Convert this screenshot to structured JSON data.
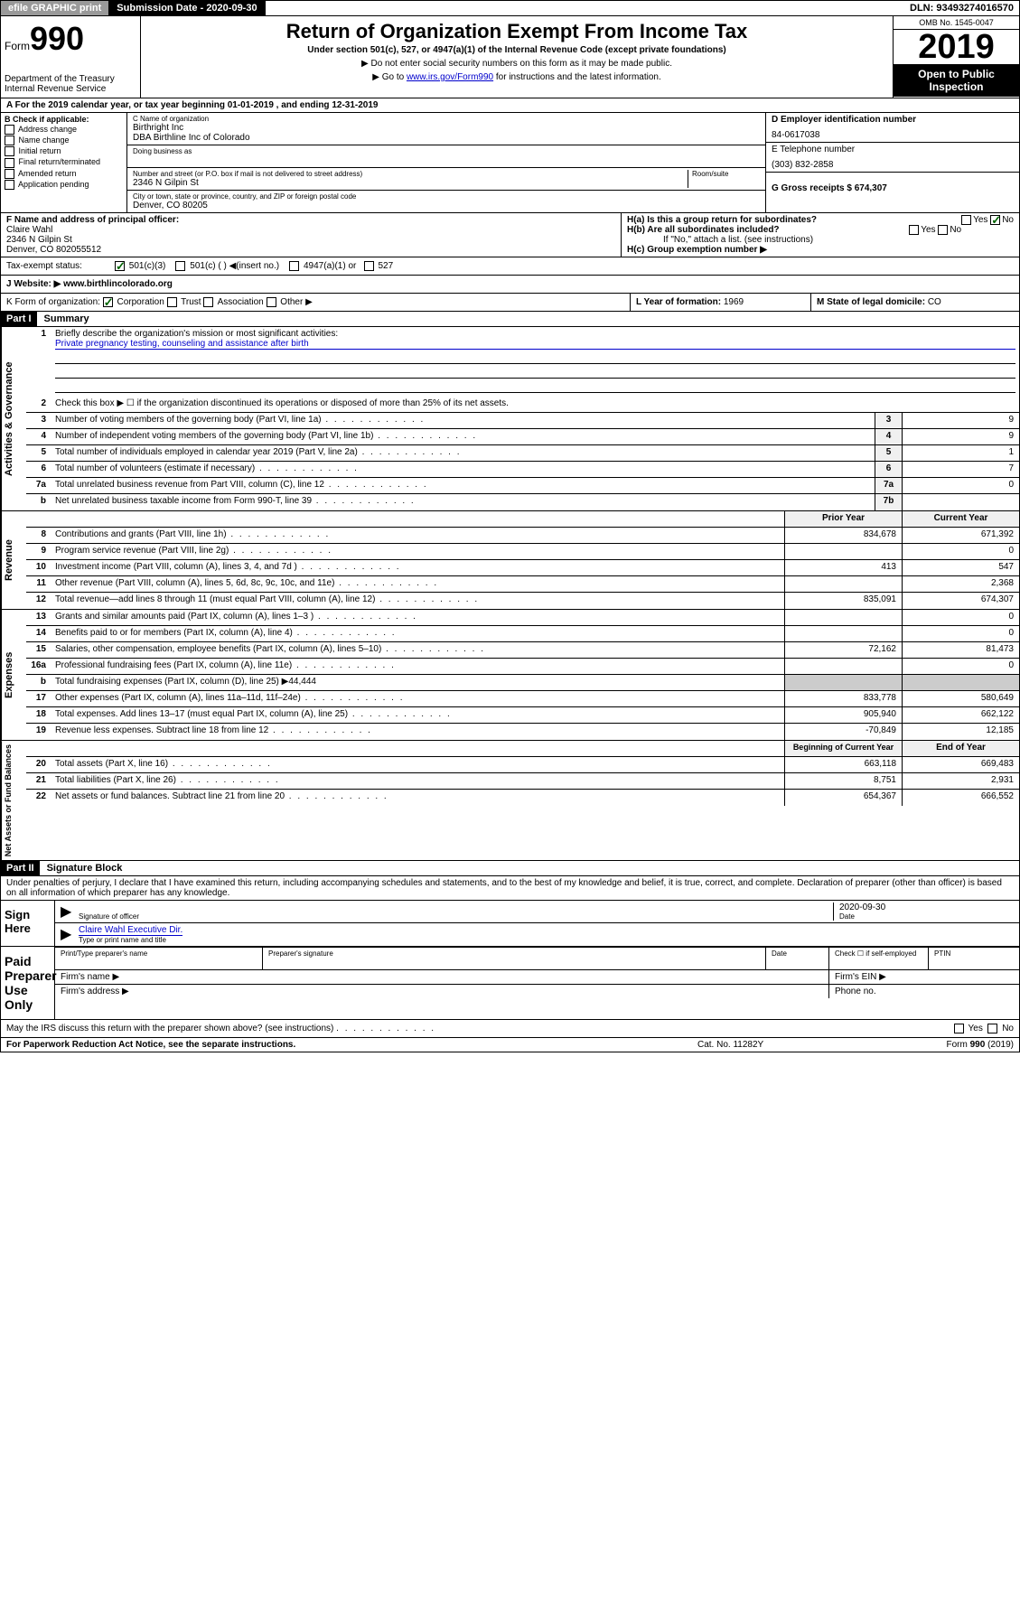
{
  "topbar": {
    "efile": "efile GRAPHIC print",
    "submission_label": "Submission Date - 2020-09-30",
    "dln": "DLN: 93493274016570"
  },
  "header": {
    "form_label": "Form",
    "form_num": "990",
    "dept": "Department of the Treasury",
    "irs": "Internal Revenue Service",
    "title": "Return of Organization Exempt From Income Tax",
    "subtitle": "Under section 501(c), 527, or 4947(a)(1) of the Internal Revenue Code (except private foundations)",
    "instr1": "▶ Do not enter social security numbers on this form as it may be made public.",
    "instr2_pre": "▶ Go to ",
    "instr2_link": "www.irs.gov/Form990",
    "instr2_post": " for instructions and the latest information.",
    "omb": "OMB No. 1545-0047",
    "year": "2019",
    "open": "Open to Public Inspection"
  },
  "period": "A   For the 2019 calendar year, or tax year beginning 01-01-2019    , and ending 12-31-2019",
  "col_b": {
    "hdr": "B Check if applicable:",
    "items": [
      "Address change",
      "Name change",
      "Initial return",
      "Final return/terminated",
      "Amended return",
      "Application pending"
    ]
  },
  "col_c": {
    "name_label": "C Name of organization",
    "name1": "Birthright Inc",
    "name2": "DBA Birthline Inc of Colorado",
    "dba_label": "Doing business as",
    "addr_label": "Number and street (or P.O. box if mail is not delivered to street address)",
    "room_label": "Room/suite",
    "addr": "2346 N Gilpin St",
    "city_label": "City or town, state or province, country, and ZIP or foreign postal code",
    "city": "Denver, CO  80205"
  },
  "col_de": {
    "d_label": "D Employer identification number",
    "ein": "84-0617038",
    "e_label": "E Telephone number",
    "phone": "(303) 832-2858",
    "g_label": "G Gross receipts $ 674,307"
  },
  "row_f": {
    "f_label": "F  Name and address of principal officer:",
    "name": "Claire Wahl",
    "addr1": "2346 N Gilpin St",
    "addr2": "Denver, CO  802055512"
  },
  "row_h": {
    "ha": "H(a)  Is this a group return for subordinates?",
    "hb": "H(b)  Are all subordinates included?",
    "hb_note": "If \"No,\" attach a list. (see instructions)",
    "hc": "H(c)  Group exemption number ▶"
  },
  "tax_status": {
    "label": "Tax-exempt status:",
    "opts": [
      "501(c)(3)",
      "501(c) (   ) ◀(insert no.)",
      "4947(a)(1) or",
      "527"
    ]
  },
  "website": {
    "label": "J   Website: ▶",
    "url": "www.birthlincolorado.org"
  },
  "klm": {
    "k": "K Form of organization:",
    "k_opts": [
      "Corporation",
      "Trust",
      "Association",
      "Other ▶"
    ],
    "l_label": "L Year of formation:",
    "l_val": "1969",
    "m_label": "M State of legal domicile:",
    "m_val": "CO"
  },
  "part1": {
    "hdr": "Part I",
    "title": "Summary",
    "q1": "Briefly describe the organization's mission or most significant activities:",
    "q1_ans": "Private pregnancy testing, counseling and assistance after birth",
    "q2": "Check this box ▶ ☐  if the organization discontinued its operations or disposed of more than 25% of its net assets.",
    "lines_gov": [
      {
        "n": "3",
        "d": "Number of voting members of the governing body (Part VI, line 1a)",
        "box": "3",
        "v": "9"
      },
      {
        "n": "4",
        "d": "Number of independent voting members of the governing body (Part VI, line 1b)",
        "box": "4",
        "v": "9"
      },
      {
        "n": "5",
        "d": "Total number of individuals employed in calendar year 2019 (Part V, line 2a)",
        "box": "5",
        "v": "1"
      },
      {
        "n": "6",
        "d": "Total number of volunteers (estimate if necessary)",
        "box": "6",
        "v": "7"
      },
      {
        "n": "7a",
        "d": "Total unrelated business revenue from Part VIII, column (C), line 12",
        "box": "7a",
        "v": "0"
      },
      {
        "n": "b",
        "d": "Net unrelated business taxable income from Form 990-T, line 39",
        "box": "7b",
        "v": ""
      }
    ],
    "col_py": "Prior Year",
    "col_cy": "Current Year",
    "lines_rev": [
      {
        "n": "8",
        "d": "Contributions and grants (Part VIII, line 1h)",
        "py": "834,678",
        "cy": "671,392"
      },
      {
        "n": "9",
        "d": "Program service revenue (Part VIII, line 2g)",
        "py": "",
        "cy": "0"
      },
      {
        "n": "10",
        "d": "Investment income (Part VIII, column (A), lines 3, 4, and 7d )",
        "py": "413",
        "cy": "547"
      },
      {
        "n": "11",
        "d": "Other revenue (Part VIII, column (A), lines 5, 6d, 8c, 9c, 10c, and 11e)",
        "py": "",
        "cy": "2,368"
      },
      {
        "n": "12",
        "d": "Total revenue—add lines 8 through 11 (must equal Part VIII, column (A), line 12)",
        "py": "835,091",
        "cy": "674,307"
      }
    ],
    "lines_exp": [
      {
        "n": "13",
        "d": "Grants and similar amounts paid (Part IX, column (A), lines 1–3 )",
        "py": "",
        "cy": "0"
      },
      {
        "n": "14",
        "d": "Benefits paid to or for members (Part IX, column (A), line 4)",
        "py": "",
        "cy": "0"
      },
      {
        "n": "15",
        "d": "Salaries, other compensation, employee benefits (Part IX, column (A), lines 5–10)",
        "py": "72,162",
        "cy": "81,473"
      },
      {
        "n": "16a",
        "d": "Professional fundraising fees (Part IX, column (A), line 11e)",
        "py": "",
        "cy": "0"
      },
      {
        "n": "b",
        "d": "Total fundraising expenses (Part IX, column (D), line 25) ▶44,444",
        "py": "—",
        "cy": "—"
      },
      {
        "n": "17",
        "d": "Other expenses (Part IX, column (A), lines 11a–11d, 11f–24e)",
        "py": "833,778",
        "cy": "580,649"
      },
      {
        "n": "18",
        "d": "Total expenses. Add lines 13–17 (must equal Part IX, column (A), line 25)",
        "py": "905,940",
        "cy": "662,122"
      },
      {
        "n": "19",
        "d": "Revenue less expenses. Subtract line 18 from line 12",
        "py": "-70,849",
        "cy": "12,185"
      }
    ],
    "col_bcy": "Beginning of Current Year",
    "col_eoy": "End of Year",
    "lines_net": [
      {
        "n": "20",
        "d": "Total assets (Part X, line 16)",
        "py": "663,118",
        "cy": "669,483"
      },
      {
        "n": "21",
        "d": "Total liabilities (Part X, line 26)",
        "py": "8,751",
        "cy": "2,931"
      },
      {
        "n": "22",
        "d": "Net assets or fund balances. Subtract line 21 from line 20",
        "py": "654,367",
        "cy": "666,552"
      }
    ],
    "side1": "Activities & Governance",
    "side2": "Revenue",
    "side3": "Expenses",
    "side4": "Net Assets or Fund Balances"
  },
  "part2": {
    "hdr": "Part II",
    "title": "Signature Block",
    "decl": "Under penalties of perjury, I declare that I have examined this return, including accompanying schedules and statements, and to the best of my knowledge and belief, it is true, correct, and complete. Declaration of preparer (other than officer) is based on all information of which preparer has any knowledge.",
    "sign_here": "Sign Here",
    "sig_officer": "Signature of officer",
    "date": "2020-09-30",
    "date_label": "Date",
    "officer_name": "Claire Wahl  Executive Dir.",
    "type_name": "Type or print name and title",
    "paid": "Paid Preparer Use Only",
    "prep_name": "Print/Type preparer's name",
    "prep_sig": "Preparer's signature",
    "prep_date": "Date",
    "check_self": "Check ☐ if self-employed",
    "ptin": "PTIN",
    "firm_name": "Firm's name  ▶",
    "firm_ein": "Firm's EIN ▶",
    "firm_addr": "Firm's address ▶",
    "phone": "Phone no.",
    "discuss": "May the IRS discuss this return with the preparer shown above? (see instructions)",
    "yes": "Yes",
    "no": "No"
  },
  "footer": {
    "pra": "For Paperwork Reduction Act Notice, see the separate instructions.",
    "cat": "Cat. No. 11282Y",
    "form": "Form 990 (2019)"
  }
}
